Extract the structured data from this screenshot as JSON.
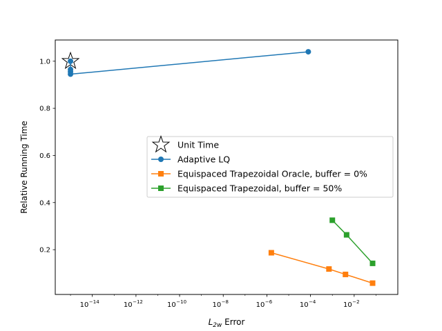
{
  "chart_data": {
    "type": "line",
    "title": "",
    "xlabel_main": "L",
    "xlabel_sub": "2w",
    "xlabel_rest": " Error",
    "ylabel": "Relative Running Time",
    "xscale": "log",
    "xlim": [
      2e-16,
      1.0
    ],
    "ylim": [
      0.01,
      1.09
    ],
    "xticks": [
      {
        "exp": -14,
        "base": "10",
        "sup": "−14"
      },
      {
        "exp": -12,
        "base": "10",
        "sup": "−12"
      },
      {
        "exp": -10,
        "base": "10",
        "sup": "−10"
      },
      {
        "exp": -8,
        "base": "10",
        "sup": "−8"
      },
      {
        "exp": -6,
        "base": "10",
        "sup": "−6"
      },
      {
        "exp": -4,
        "base": "10",
        "sup": "−4"
      },
      {
        "exp": -2,
        "base": "10",
        "sup": "−2"
      }
    ],
    "yticks": [
      {
        "value": 0.2,
        "label": "0.2"
      },
      {
        "value": 0.4,
        "label": "0.4"
      },
      {
        "value": 0.6,
        "label": "0.6"
      },
      {
        "value": 0.8,
        "label": "0.8"
      },
      {
        "value": 1.0,
        "label": "1.0"
      }
    ],
    "grid": false,
    "legend_position": "center-right",
    "series": [
      {
        "name": "Unit Time",
        "marker": "star",
        "line": false,
        "color": "#000000",
        "x": [
          1e-15
        ],
        "y": [
          1.0
        ]
      },
      {
        "name": "Adaptive LQ",
        "marker": "circle",
        "line": true,
        "color": "#1f77b4",
        "x": [
          1e-15,
          1e-15,
          1e-15,
          1e-15,
          7.9e-05
        ],
        "y": [
          1.0,
          0.965,
          0.955,
          0.945,
          1.04
        ]
      },
      {
        "name": "Equispaced Trapezoidal Oracle, buffer = 0%",
        "marker": "square",
        "line": true,
        "color": "#ff7f0e",
        "x": [
          1.6e-06,
          0.0007,
          0.004,
          0.07
        ],
        "y": [
          0.187,
          0.118,
          0.095,
          0.058
        ]
      },
      {
        "name": "Equispaced Trapezoidal, buffer = 50%",
        "marker": "square",
        "line": true,
        "color": "#2ca02c",
        "x": [
          0.001,
          0.0045,
          0.07
        ],
        "y": [
          0.325,
          0.263,
          0.142
        ]
      }
    ]
  }
}
